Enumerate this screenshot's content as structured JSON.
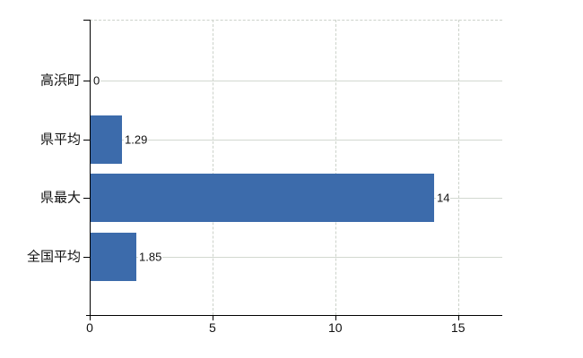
{
  "chart_data": {
    "type": "bar",
    "orientation": "horizontal",
    "title": "",
    "xlabel": "",
    "ylabel": "",
    "categories": [
      "高浜町",
      "県平均",
      "県最大",
      "全国平均"
    ],
    "values": [
      0,
      1.29,
      14,
      1.85
    ],
    "value_labels": [
      "0",
      "1.29",
      "14",
      "1.85"
    ],
    "x_ticks": [
      0,
      5,
      10,
      15
    ],
    "x_tick_labels": [
      "0",
      "5",
      "10",
      "15"
    ],
    "xlim": [
      0,
      16.8
    ],
    "grid": true,
    "legend": false,
    "colors": {
      "bar": "#3c6bab",
      "grid": "#ccd2ca",
      "axis": "#000000",
      "text": "#111111",
      "background": "#ffffff"
    }
  }
}
